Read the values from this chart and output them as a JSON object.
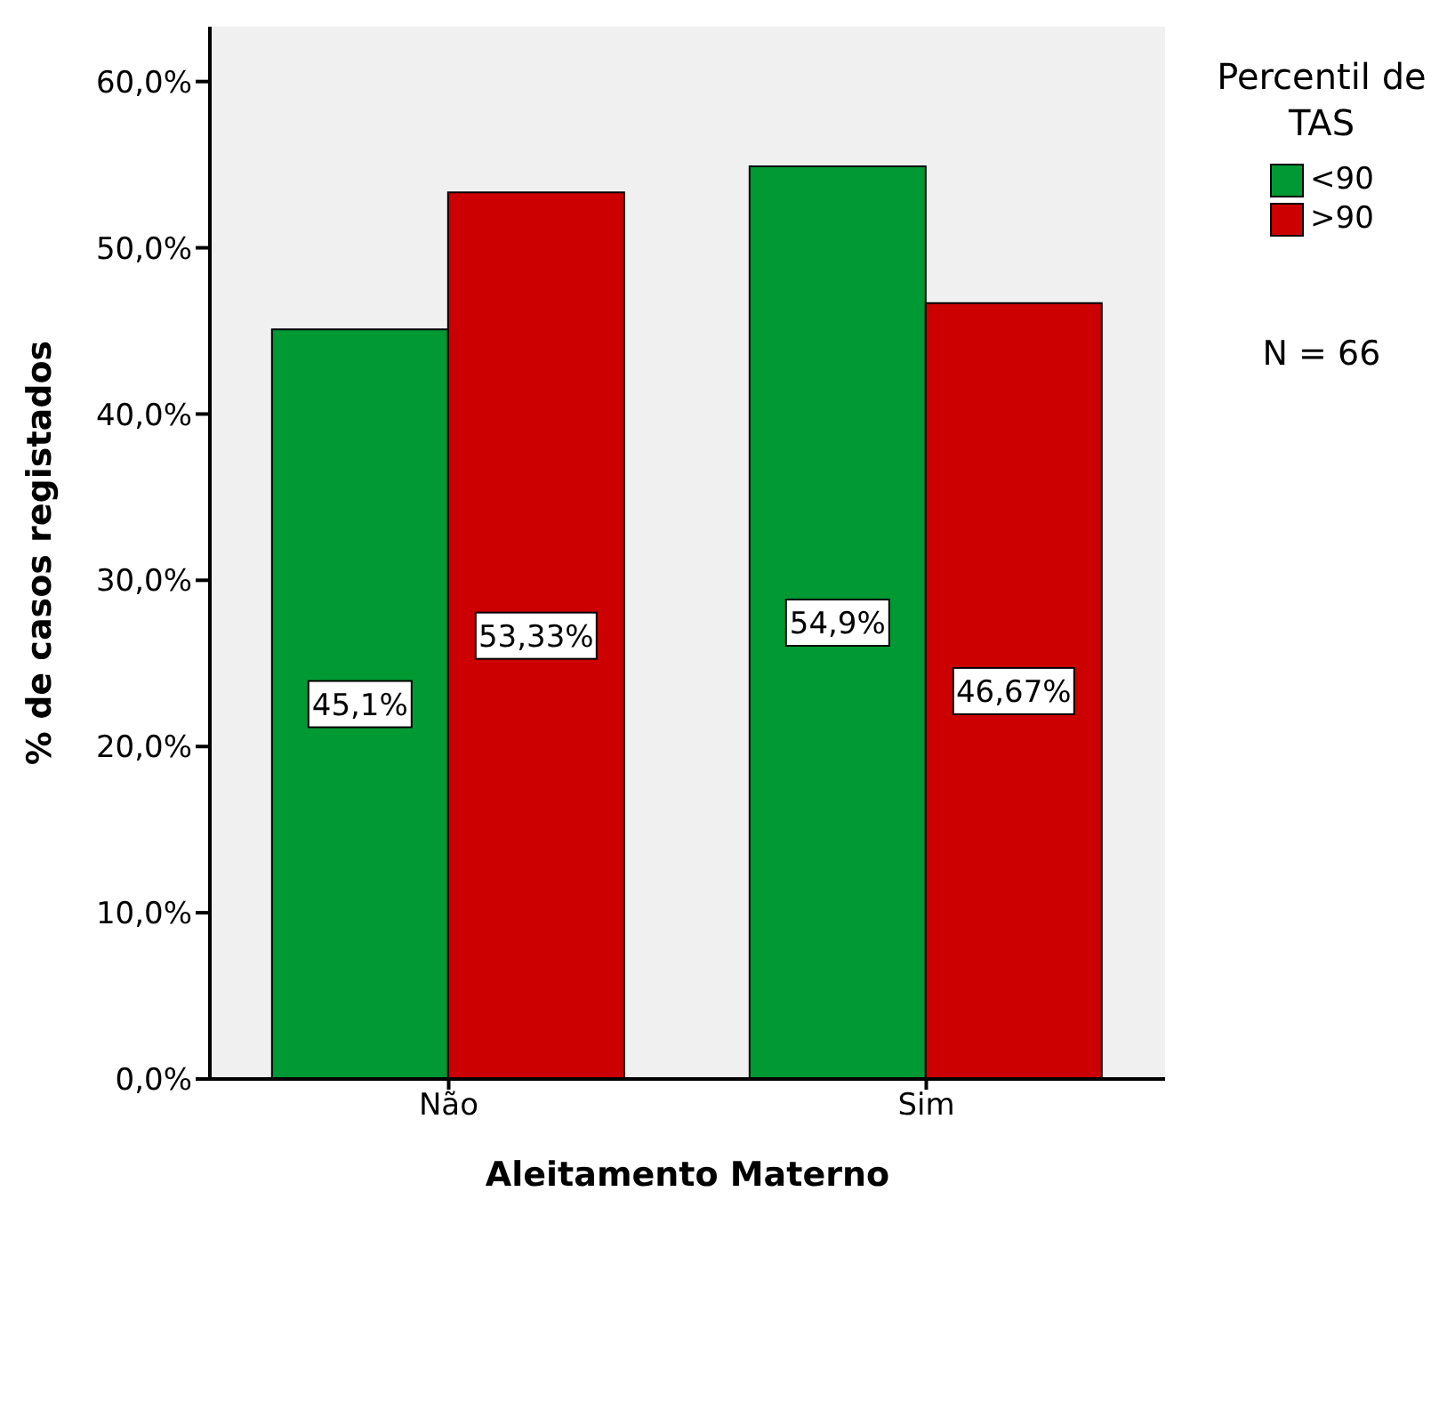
{
  "chart_data": {
    "type": "bar",
    "xlabel": "Aleitamento Materno",
    "ylabel": "% de casos registados",
    "legend_title": "Percentil de TAS",
    "categories": [
      "Não",
      "Sim"
    ],
    "series": [
      {
        "name": "<90",
        "color": "#009933",
        "values": [
          45.1,
          54.9
        ],
        "value_labels": [
          "45,1%",
          "54,9%"
        ]
      },
      {
        "name": ">90",
        "color": "#cc0000",
        "values": [
          53.33,
          46.67
        ],
        "value_labels": [
          "53,33%",
          "46,67%"
        ]
      }
    ],
    "ylim": [
      0,
      63.3
    ],
    "yticks": [
      {
        "value": 0,
        "label": "0,0%"
      },
      {
        "value": 10,
        "label": "10,0%"
      },
      {
        "value": 20,
        "label": "20,0%"
      },
      {
        "value": 30,
        "label": "30,0%"
      },
      {
        "value": 40,
        "label": "40,0%"
      },
      {
        "value": 50,
        "label": "50,0%"
      },
      {
        "value": 60,
        "label": "60,0%"
      }
    ],
    "grid": false,
    "legend": "top right",
    "annotations": [
      "N = 66"
    ]
  }
}
